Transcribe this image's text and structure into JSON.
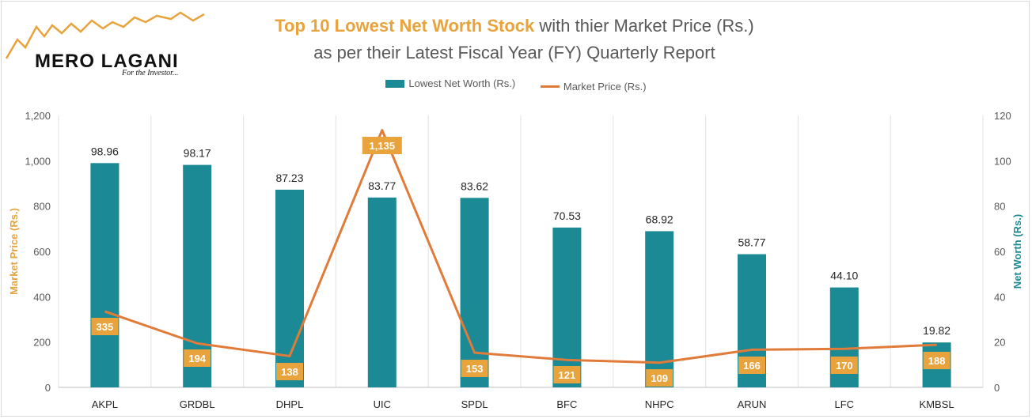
{
  "logo": {
    "name": "MERO LAGANI",
    "tagline": "For the Investor..."
  },
  "title": {
    "highlight": "Top 10 Lowest Net Worth Stock",
    "rest": " with thier Market Price (Rs.)",
    "line2": "as per their Latest Fiscal Year (FY) Quarterly Report"
  },
  "legend": {
    "bar": "Lowest Net Worth (Rs.)",
    "line": "Market Price (Rs.)"
  },
  "chart_data": {
    "type": "bar",
    "categories": [
      "AKPL",
      "GRDBL",
      "DHPL",
      "UIC",
      "SPDL",
      "BFC",
      "NHPC",
      "ARUN",
      "LFC",
      "KMBSL"
    ],
    "series": [
      {
        "name": "Lowest Net Worth (Rs.)",
        "type": "bar",
        "axis": "right",
        "values": [
          98.96,
          98.17,
          87.23,
          83.77,
          83.62,
          70.53,
          68.92,
          58.77,
          44.1,
          19.82
        ],
        "labels": [
          "98.96",
          "98.17",
          "87.23",
          "83.77",
          "83.62",
          "70.53",
          "68.92",
          "58.77",
          "44.10",
          "19.82"
        ],
        "color": "#1b8a94"
      },
      {
        "name": "Market Price (Rs.)",
        "type": "line",
        "axis": "left",
        "values": [
          335,
          194,
          138,
          1135,
          153,
          121,
          109,
          166,
          170,
          188
        ],
        "labels": [
          "335",
          "194",
          "138",
          "1,135",
          "153",
          "121",
          "109",
          "166",
          "170",
          "188"
        ],
        "color": "#e07b39"
      }
    ],
    "ylabel_left": "Market Price (Rs.)",
    "ylabel_right": "Net Worth (Rs.)",
    "ylim_left": [
      0,
      1200
    ],
    "ylim_right": [
      0,
      120
    ],
    "yticks_left": [
      "0",
      "200",
      "400",
      "600",
      "800",
      "1,000",
      "1,200"
    ],
    "yticks_right": [
      "0",
      "20",
      "40",
      "60",
      "80",
      "100",
      "120"
    ],
    "label_color": "#e8a33c",
    "right_axis_color": "#1b8a94",
    "grid": "vertical-category-separators",
    "legend_position": "top"
  }
}
